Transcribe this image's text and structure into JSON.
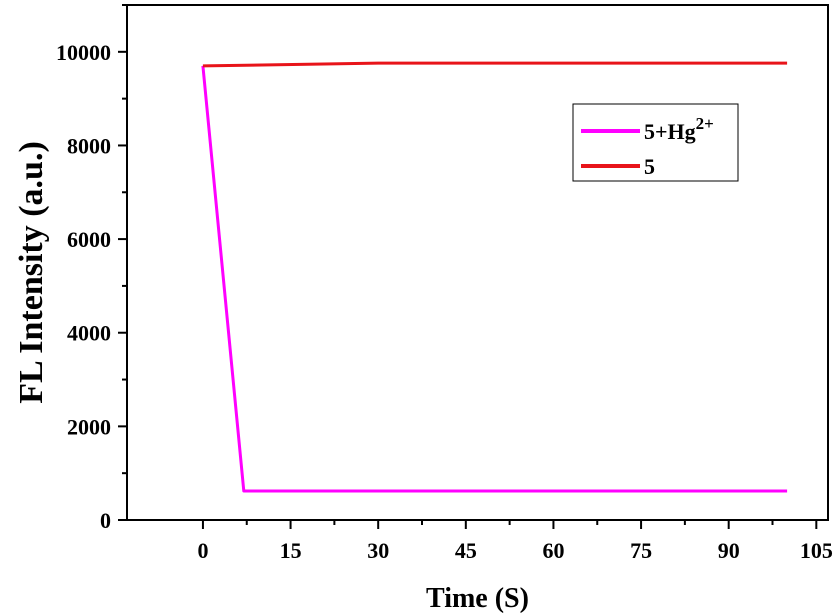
{
  "chart_data": {
    "type": "line",
    "title": "",
    "xlabel": "Time (S)",
    "ylabel": "FL Intensity (a.u.)",
    "xlim": [
      -13,
      107
    ],
    "ylim": [
      0,
      11000
    ],
    "xticks": [
      0,
      15,
      30,
      45,
      60,
      75,
      90,
      105
    ],
    "yticks": [
      0,
      2000,
      4000,
      6000,
      8000,
      10000
    ],
    "grid": false,
    "legend_position": "top-right",
    "series": [
      {
        "legend": {
          "base": "5+Hg",
          "sup": "2+"
        },
        "color": "#ff00ff",
        "x": [
          0,
          7,
          100
        ],
        "y": [
          9700,
          620,
          620
        ]
      },
      {
        "legend": {
          "base": "5",
          "sup": ""
        },
        "color": "#e8141a",
        "x": [
          0,
          30,
          100
        ],
        "y": [
          9700,
          9760,
          9760
        ]
      }
    ]
  }
}
